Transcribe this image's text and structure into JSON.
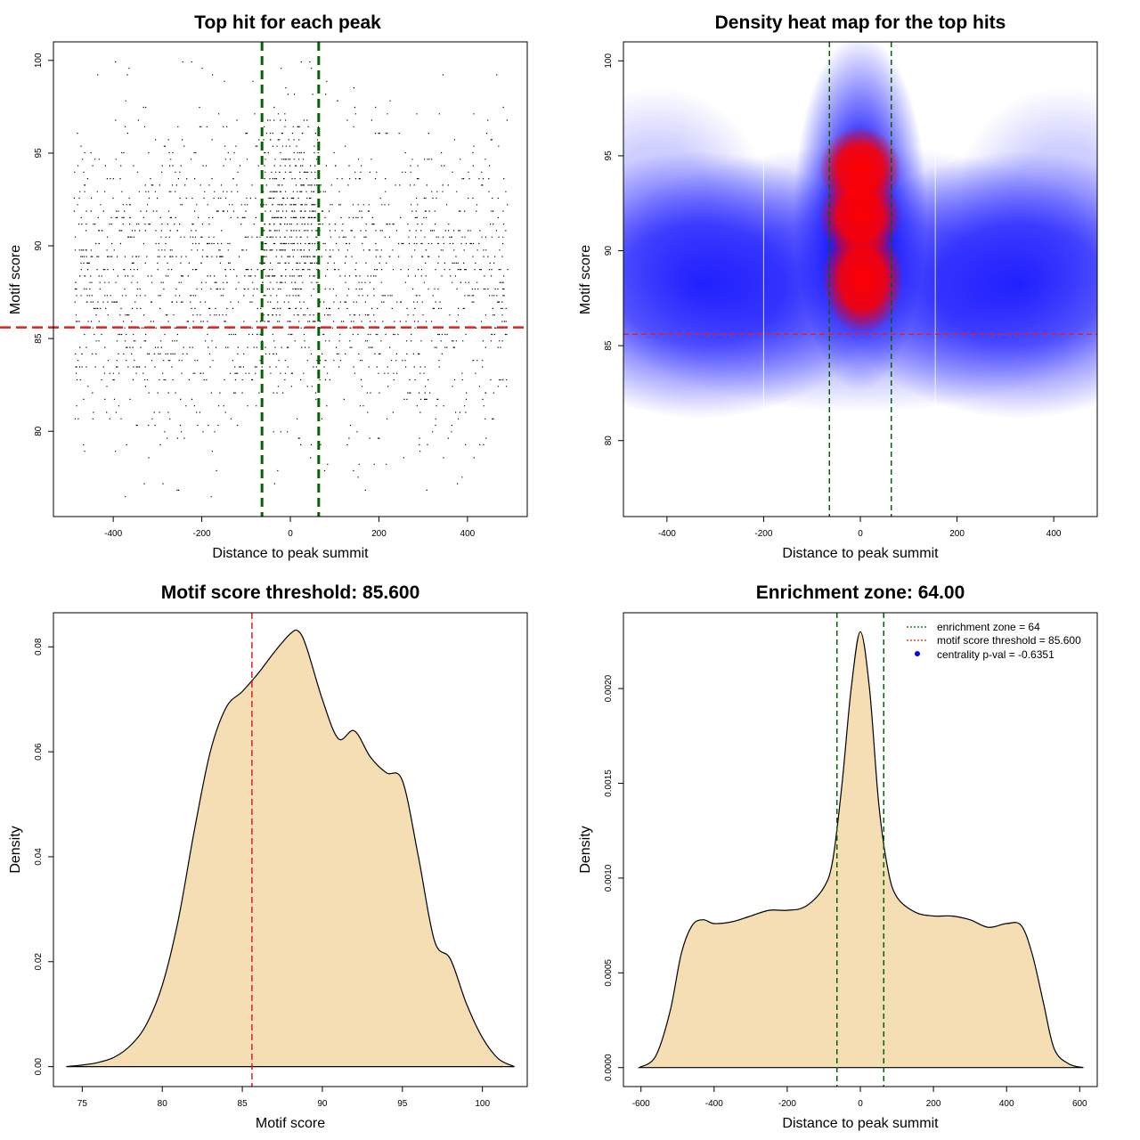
{
  "chart_data": [
    {
      "type": "scatter",
      "id": "scatter",
      "title": "Top hit for each peak",
      "xlabel": "Distance to peak summit",
      "ylabel": "Motif score",
      "xlim": [
        -535,
        535
      ],
      "ylim": [
        75.4,
        101.0
      ],
      "xticks": [
        -400,
        -200,
        0,
        200,
        400
      ],
      "yticks": [
        80,
        85,
        90,
        95,
        100
      ],
      "enrichment_zone": [
        -64,
        64
      ],
      "score_threshold": 85.6,
      "point_cloud": {
        "n_points": 9000,
        "x_range": [
          -490,
          490
        ],
        "y_range": [
          76.5,
          100
        ],
        "central_band_x": [
          -64,
          64
        ],
        "central_band_y_mean": 91.5
      },
      "colors": {
        "points": "#000000",
        "zone": "#006400",
        "threshold": "#dd2222"
      }
    },
    {
      "type": "heatmap",
      "id": "heatmap",
      "title": "Density heat map for the top hits",
      "xlabel": "Distance to peak summit",
      "ylabel": "Motif score",
      "xlim": [
        -490,
        490
      ],
      "ylim": [
        76.0,
        101.0
      ],
      "xticks": [
        -400,
        -200,
        0,
        200,
        400
      ],
      "yticks": [
        80,
        85,
        90,
        95,
        100
      ],
      "enrichment_zone": [
        -64,
        64
      ],
      "score_threshold": 85.6,
      "white_gridlines_x": [
        -200,
        155
      ],
      "hotspots": [
        {
          "x": 0,
          "y": 94.3
        },
        {
          "x": 0,
          "y": 91.8
        },
        {
          "x": 5,
          "y": 88.5
        }
      ],
      "colors": {
        "low": "#ffffff",
        "mid": "#0000ff",
        "high": "#ff0000",
        "zone": "#006400",
        "threshold": "#dd2222"
      }
    },
    {
      "type": "area",
      "id": "score-density",
      "title": "Motif score threshold: 85.600",
      "xlabel": "Motif score",
      "ylabel": "Density",
      "xlim": [
        73.2,
        102.8
      ],
      "ylim": [
        -0.0038,
        0.0865
      ],
      "xticks": [
        75,
        80,
        85,
        90,
        95,
        100
      ],
      "yticks": [
        0.0,
        0.02,
        0.04,
        0.06,
        0.08
      ],
      "ytick_labels": [
        "0.00",
        "0.02",
        "0.04",
        "0.06",
        "0.08"
      ],
      "threshold": 85.6,
      "x": [
        74,
        75,
        76,
        77,
        78,
        79,
        80,
        81,
        82,
        83,
        84,
        85,
        86,
        87,
        88,
        88.5,
        89,
        90,
        91,
        92,
        93,
        94,
        95,
        96,
        97,
        98,
        99,
        100,
        101,
        102
      ],
      "values": [
        0.0,
        0.0003,
        0.0008,
        0.0018,
        0.004,
        0.008,
        0.0155,
        0.028,
        0.045,
        0.06,
        0.0685,
        0.0715,
        0.075,
        0.079,
        0.0825,
        0.083,
        0.08,
        0.07,
        0.0625,
        0.064,
        0.059,
        0.056,
        0.0545,
        0.04,
        0.024,
        0.0205,
        0.012,
        0.0055,
        0.0015,
        0.0
      ],
      "colors": {
        "fill": "#f5deb3",
        "line": "#000000",
        "threshold": "#dd2222"
      }
    },
    {
      "type": "area",
      "id": "distance-density",
      "title": "Enrichment zone: 64.00",
      "xlabel": "Distance to peak summit",
      "ylabel": "Density",
      "xlim": [
        -648,
        648
      ],
      "ylim": [
        -0.0001,
        0.0024
      ],
      "xticks": [
        -600,
        -400,
        -200,
        0,
        200,
        400,
        600
      ],
      "yticks": [
        0.0,
        0.0005,
        0.001,
        0.0015,
        0.002
      ],
      "ytick_labels": [
        "0.0000",
        "0.0005",
        "0.0010",
        "0.0015",
        "0.0020"
      ],
      "enrichment_zone": [
        -64,
        64
      ],
      "x": [
        -605,
        -560,
        -520,
        -490,
        -460,
        -430,
        -400,
        -350,
        -300,
        -250,
        -200,
        -150,
        -100,
        -75,
        -50,
        -25,
        0,
        25,
        50,
        75,
        100,
        150,
        200,
        250,
        300,
        350,
        400,
        440,
        470,
        500,
        530,
        570,
        610
      ],
      "values": [
        0.0,
        6e-05,
        0.0003,
        0.0006,
        0.00075,
        0.00078,
        0.00076,
        0.00077,
        0.0008,
        0.00083,
        0.00083,
        0.00085,
        0.00095,
        0.0011,
        0.0015,
        0.002,
        0.0023,
        0.002,
        0.0014,
        0.00105,
        0.0009,
        0.00082,
        0.0008,
        0.0008,
        0.00078,
        0.00074,
        0.00076,
        0.00075,
        0.0006,
        0.00035,
        0.0001,
        2e-05,
        0.0
      ],
      "legend": {
        "position": "top-right",
        "entries": [
          {
            "label": "enrichment zone = 64",
            "color": "#006400",
            "style": "dotted-line"
          },
          {
            "label": "motif score threshold = 85.600",
            "color": "#dd2222",
            "style": "dotted-line"
          },
          {
            "label": "centrality p-val = -0.6351",
            "color": "#0000ff",
            "style": "point"
          }
        ]
      },
      "colors": {
        "fill": "#f5deb3",
        "line": "#000000",
        "zone": "#006400"
      }
    }
  ]
}
